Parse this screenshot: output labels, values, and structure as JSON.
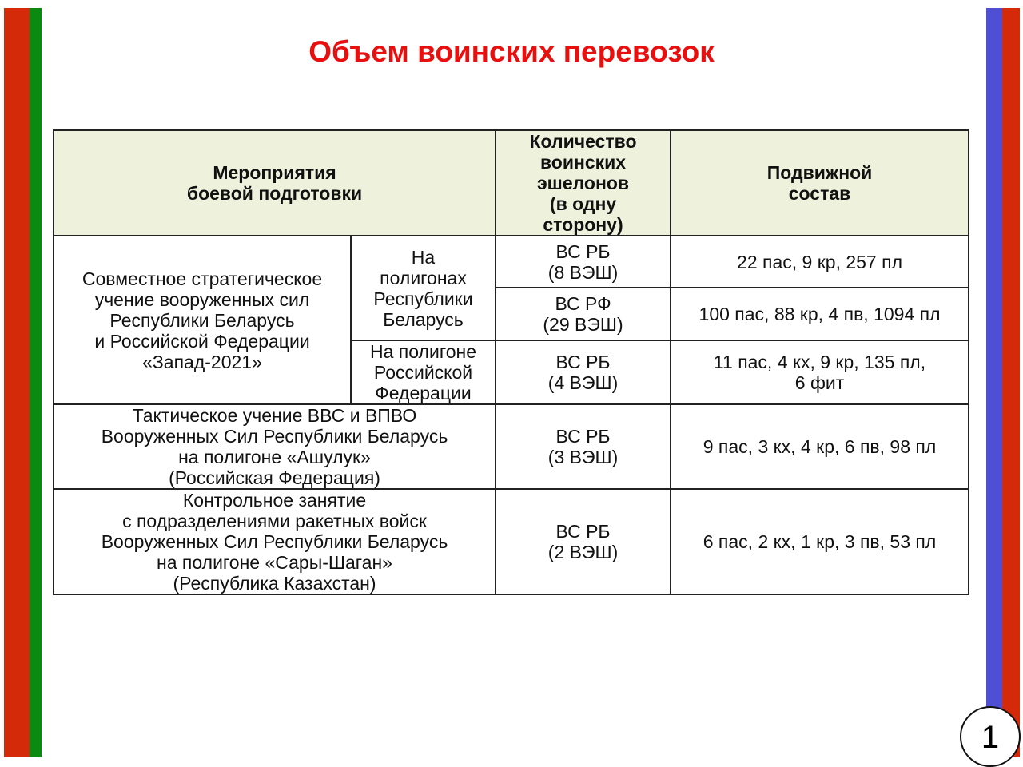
{
  "colors": {
    "left_bar": [
      "#d42a0a",
      "#0a8a10"
    ],
    "right_bar": [
      "#4f4fd6",
      "#d42a0a"
    ],
    "title": "#e8100f",
    "header_bg": "#eef2dc"
  },
  "title": "Объем воинских перевозок",
  "table": {
    "headers": [
      "Мероприятия\nбоевой подготовки",
      "Количество\nвоинских\nэшелонов\n(в одну\nсторону)",
      "Подвижной\nсостав"
    ],
    "rows": [
      {
        "event": "Совместное стратегическое\nучение вооруженных сил\nРеспублики Беларусь\nи Российской Федерации\n«Запад-2021»",
        "sub": [
          {
            "place": "На\nполигонах\nРеспублики\nБеларусь",
            "entries": [
              {
                "count": "ВС РБ\n(8 ВЭШ)",
                "stock": "22 пас, 9 кр, 257 пл"
              },
              {
                "count": "ВС РФ\n(29 ВЭШ)",
                "stock": "100 пас, 88 кр, 4 пв, 1094 пл"
              }
            ]
          },
          {
            "place": "На полигоне\nРоссийской\nФедерации",
            "entries": [
              {
                "count": "ВС РБ\n(4 ВЭШ)",
                "stock": "11 пас, 4 кх, 9 кр, 135 пл,\n6 фит"
              }
            ]
          }
        ]
      },
      {
        "event": "Тактическое учение ВВС и ВПВО\nВооруженных Сил Республики Беларусь\nна полигоне «Ашулук»\n(Российская Федерация)",
        "count": "ВС РБ\n(3 ВЭШ)",
        "stock": "9 пас, 3 кх, 4 кр, 6 пв, 98 пл"
      },
      {
        "event": "Контрольное занятие\nс подразделениями ракетных войск\nВооруженных Сил Республики Беларусь\nна полигоне «Сары-Шаган»\n(Республика Казахстан)",
        "count": "ВС РБ\n(2 ВЭШ)",
        "stock": "6 пас, 2 кх, 1 кр, 3 пв, 53 пл"
      }
    ]
  },
  "page_number": "1"
}
